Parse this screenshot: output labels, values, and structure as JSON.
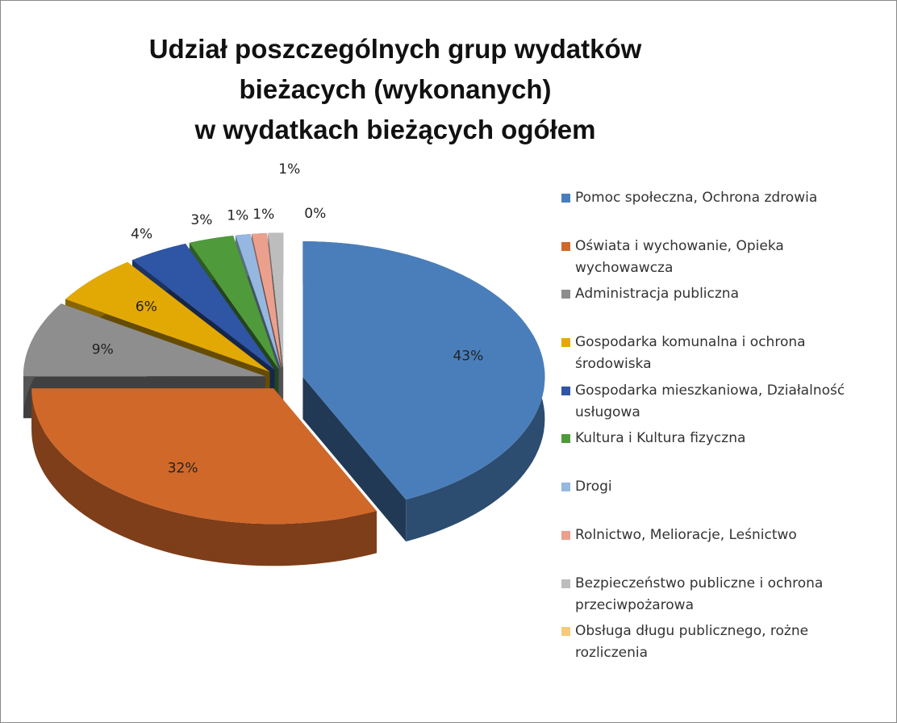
{
  "chart_data": {
    "type": "pie",
    "title": [
      "Udział poszczególnych grup wydatków",
      "bieżacych (wykonanych)",
      "w wydatkach bieżących ogółem"
    ],
    "categories": [
      "Pomoc społeczna, Ochrona zdrowia",
      "Oświata i wychowanie, Opieka wychowawcza",
      "Administracja publiczna",
      "Gospodarka komunalna i ochrona środowiska",
      "Gospodarka mieszkaniowa, Działalność usługowa",
      "Kultura i Kultura fizyczna",
      "Drogi",
      "Rolnictwo, Melioracje, Leśnictwo",
      "Bezpieczeństwo publiczne i ochrona przeciwpożarowa",
      "Obsługa długu publicznego, rożne rozliczenia"
    ],
    "values": [
      43,
      32,
      9,
      6,
      4,
      3,
      1,
      1,
      1,
      0
    ],
    "value_labels": [
      "43%",
      "32%",
      "9%",
      "6%",
      "4%",
      "3%",
      "1%",
      "1%",
      "1%",
      "0%"
    ],
    "colors": [
      "#4a7ebb",
      "#d0682a",
      "#8e8e8e",
      "#e2a905",
      "#2f55a5",
      "#4f9a3b",
      "#95b7e0",
      "#eba08d",
      "#bdbdbd",
      "#f7c979"
    ],
    "legend": "right"
  }
}
